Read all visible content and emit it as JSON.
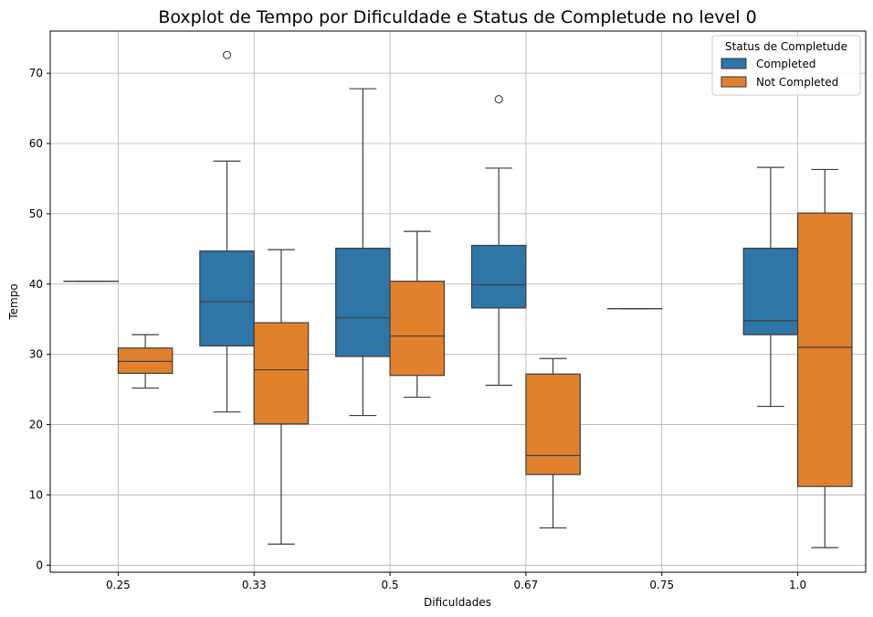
{
  "chart_data": {
    "type": "boxplot",
    "title": "Boxplot de Tempo por Dificuldade e Status de Completude no level 0",
    "xlabel": "Dificuldades",
    "ylabel": "Tempo",
    "categories": [
      "0.25",
      "0.33",
      "0.5",
      "0.67",
      "0.75",
      "1.0"
    ],
    "yticks": [
      0,
      10,
      20,
      30,
      40,
      50,
      60,
      70
    ],
    "ylim": [
      -1,
      76
    ],
    "grid": true,
    "legend": {
      "title": "Status de Completude",
      "placement": "top-right"
    },
    "series": [
      {
        "name": "Completed",
        "color": "#2e75a8",
        "boxes": [
          {
            "category": "0.25",
            "min": 40.4,
            "q1": 40.4,
            "median": 40.4,
            "q3": 40.4,
            "max": 40.4,
            "outliers": []
          },
          {
            "category": "0.33",
            "min": 21.8,
            "q1": 31.2,
            "median": 37.5,
            "q3": 44.7,
            "max": 57.5,
            "outliers": [
              72.6
            ]
          },
          {
            "category": "0.5",
            "min": 21.3,
            "q1": 29.7,
            "median": 35.2,
            "q3": 45.1,
            "max": 67.8,
            "outliers": []
          },
          {
            "category": "0.67",
            "min": 25.6,
            "q1": 36.6,
            "median": 39.9,
            "q3": 45.5,
            "max": 56.5,
            "outliers": [
              66.3
            ]
          },
          {
            "category": "0.75",
            "min": 36.5,
            "q1": 36.5,
            "median": 36.5,
            "q3": 36.5,
            "max": 36.5,
            "outliers": []
          },
          {
            "category": "1.0",
            "min": 22.6,
            "q1": 32.8,
            "median": 34.8,
            "q3": 45.1,
            "max": 56.6,
            "outliers": []
          }
        ]
      },
      {
        "name": "Not Completed",
        "color": "#e1812c",
        "boxes": [
          {
            "category": "0.25",
            "min": 25.2,
            "q1": 27.3,
            "median": 29.0,
            "q3": 30.9,
            "max": 32.8,
            "outliers": []
          },
          {
            "category": "0.33",
            "min": 3.0,
            "q1": 20.1,
            "median": 27.8,
            "q3": 34.5,
            "max": 44.9,
            "outliers": []
          },
          {
            "category": "0.5",
            "min": 23.9,
            "q1": 27.0,
            "median": 32.6,
            "q3": 40.4,
            "max": 47.5,
            "outliers": []
          },
          {
            "category": "0.67",
            "min": 5.3,
            "q1": 12.9,
            "median": 15.6,
            "q3": 27.2,
            "max": 29.4,
            "outliers": []
          },
          {
            "category": "1.0",
            "min": 2.5,
            "q1": 11.2,
            "median": 31.0,
            "q3": 50.1,
            "max": 56.3,
            "outliers": []
          }
        ]
      }
    ]
  }
}
